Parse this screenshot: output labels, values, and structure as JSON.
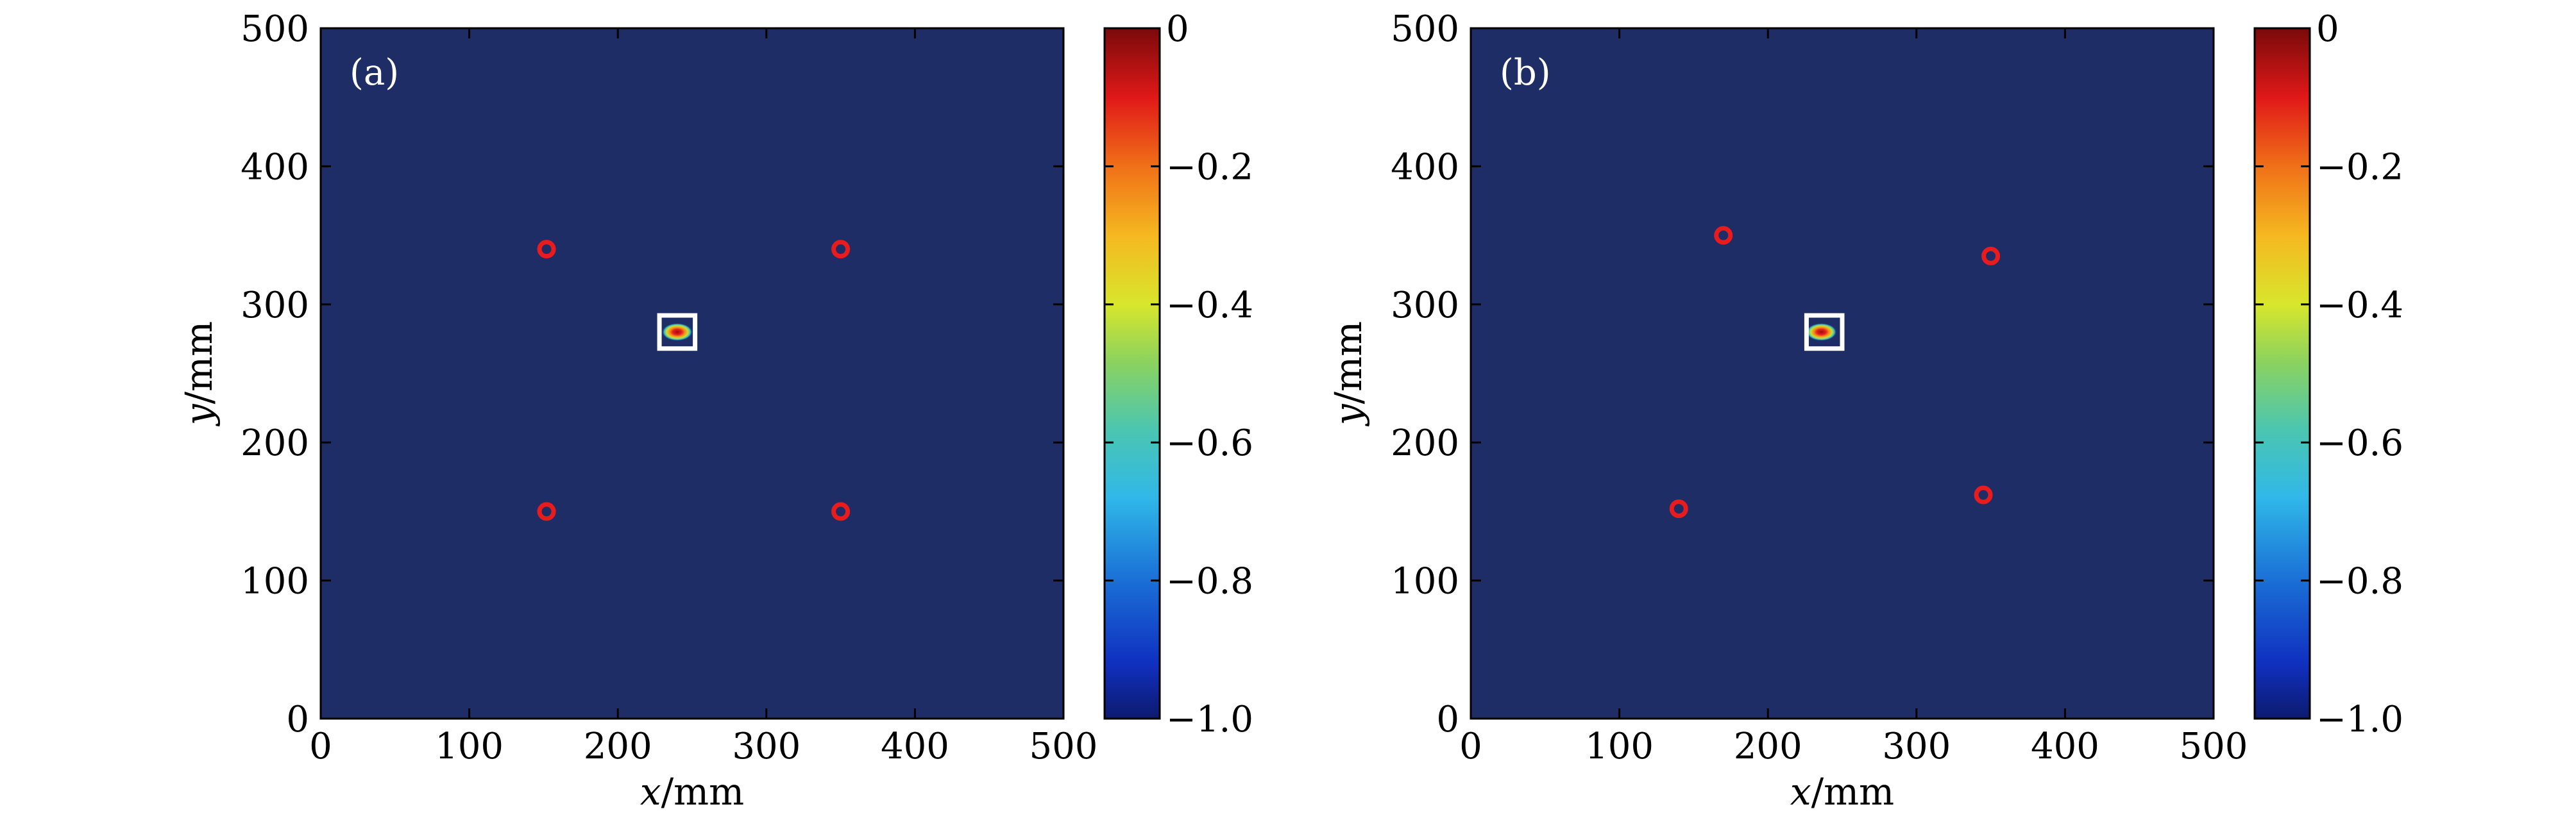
{
  "chart_data": [
    {
      "type": "heatmap",
      "panel_label": "(a)",
      "xlabel_var": "x",
      "xlabel_unit": "/mm",
      "ylabel_var": "y",
      "ylabel_unit": "/mm",
      "xlim": [
        0,
        500
      ],
      "ylim": [
        0,
        500
      ],
      "xticks": [
        "0",
        "100",
        "200",
        "300",
        "400",
        "500"
      ],
      "yticks": [
        "0",
        "100",
        "200",
        "300",
        "400",
        "500"
      ],
      "background_value": -1.0,
      "colorbar": {
        "range": [
          -1.0,
          0
        ],
        "ticks": [
          "0",
          "−0.2",
          "−0.4",
          "−0.6",
          "−0.8",
          "−1.0"
        ],
        "colormap": "jet"
      },
      "markers": [
        {
          "x": 152,
          "y": 340
        },
        {
          "x": 350,
          "y": 340
        },
        {
          "x": 152,
          "y": 150
        },
        {
          "x": 350,
          "y": 150
        }
      ],
      "hotspot": {
        "x": 240,
        "y": 280,
        "value": 0
      },
      "highlight_box": {
        "x": [
          228,
          252
        ],
        "y": [
          268,
          292
        ]
      }
    },
    {
      "type": "heatmap",
      "panel_label": "(b)",
      "xlabel_var": "x",
      "xlabel_unit": "/mm",
      "ylabel_var": "y",
      "ylabel_unit": "/mm",
      "xlim": [
        0,
        500
      ],
      "ylim": [
        0,
        500
      ],
      "xticks": [
        "0",
        "100",
        "200",
        "300",
        "400",
        "500"
      ],
      "yticks": [
        "0",
        "100",
        "200",
        "300",
        "400",
        "500"
      ],
      "background_value": -1.0,
      "colorbar": {
        "range": [
          -1.0,
          0
        ],
        "ticks": [
          "0",
          "−0.2",
          "−0.4",
          "−0.6",
          "−0.8",
          "−1.0"
        ],
        "colormap": "jet"
      },
      "markers": [
        {
          "x": 170,
          "y": 350
        },
        {
          "x": 350,
          "y": 335
        },
        {
          "x": 140,
          "y": 152
        },
        {
          "x": 345,
          "y": 162
        }
      ],
      "hotspot": {
        "x": 236,
        "y": 280,
        "value": 0
      },
      "highlight_box": {
        "x": [
          226,
          250
        ],
        "y": [
          268,
          292
        ]
      }
    }
  ]
}
